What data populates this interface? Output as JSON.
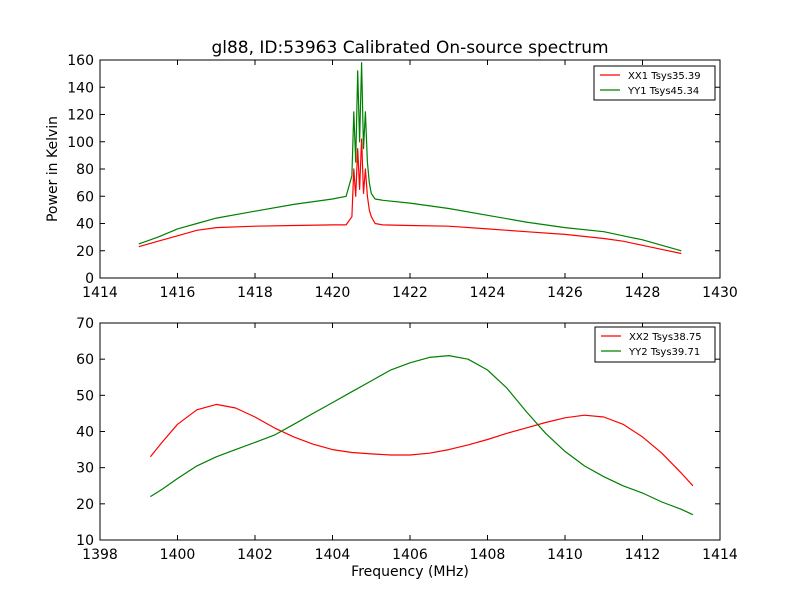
{
  "figure": {
    "title": "gl88, ID:53963 Calibrated On-source spectrum",
    "ylabel": "Power in Kelvin",
    "xlabel": "Frequency (MHz)"
  },
  "chart_data": [
    {
      "type": "line",
      "xlim": [
        1414,
        1430
      ],
      "ylim": [
        0,
        160
      ],
      "xticks": [
        "1414",
        "1416",
        "1418",
        "1420",
        "1422",
        "1424",
        "1426",
        "1428",
        "1430"
      ],
      "yticks": [
        "0",
        "20",
        "40",
        "60",
        "80",
        "100",
        "120",
        "140",
        "160"
      ],
      "legend_position": "top-right",
      "series": [
        {
          "name": "XX1 Tsys35.39",
          "color": "#ff0000",
          "x": [
            1415.0,
            1415.5,
            1416.0,
            1416.5,
            1417.0,
            1418.0,
            1419.0,
            1420.0,
            1420.35,
            1420.5,
            1420.55,
            1420.6,
            1420.65,
            1420.7,
            1420.75,
            1420.8,
            1420.85,
            1420.9,
            1420.95,
            1421.0,
            1421.1,
            1421.3,
            1422.0,
            1423.0,
            1424.0,
            1425.0,
            1426.0,
            1427.0,
            1427.5,
            1428.0,
            1428.5,
            1429.0
          ],
          "y": [
            23,
            27,
            31,
            35,
            37,
            38,
            38.5,
            39,
            39,
            45,
            80,
            60,
            95,
            65,
            102,
            62,
            80,
            60,
            50,
            45,
            40,
            39,
            38.5,
            38,
            36,
            34,
            32,
            29,
            27,
            24,
            21,
            18
          ]
        },
        {
          "name": "YY1 Tsys45.34",
          "color": "#008000",
          "x": [
            1415.0,
            1415.5,
            1416.0,
            1416.5,
            1417.0,
            1418.0,
            1419.0,
            1420.0,
            1420.35,
            1420.5,
            1420.55,
            1420.6,
            1420.65,
            1420.7,
            1420.75,
            1420.8,
            1420.85,
            1420.9,
            1420.95,
            1421.0,
            1421.1,
            1421.3,
            1422.0,
            1423.0,
            1424.0,
            1425.0,
            1426.0,
            1427.0,
            1427.5,
            1428.0,
            1428.5,
            1429.0
          ],
          "y": [
            25,
            30,
            36,
            40,
            44,
            49,
            54,
            58,
            60,
            75,
            122,
            85,
            152,
            100,
            158,
            95,
            122,
            85,
            70,
            62,
            58,
            57,
            55,
            51,
            46,
            41,
            37,
            34,
            31,
            28,
            24,
            20
          ]
        }
      ]
    },
    {
      "type": "line",
      "xlim": [
        1398,
        1414
      ],
      "ylim": [
        10,
        70
      ],
      "xticks": [
        "1398",
        "1400",
        "1402",
        "1404",
        "1406",
        "1408",
        "1410",
        "1412",
        "1414"
      ],
      "yticks": [
        "10",
        "20",
        "30",
        "40",
        "50",
        "60",
        "70"
      ],
      "legend_position": "top-right",
      "series": [
        {
          "name": "XX2 Tsys38.75",
          "color": "#ff0000",
          "x": [
            1399.3,
            1399.6,
            1400.0,
            1400.5,
            1401.0,
            1401.5,
            1402.0,
            1402.5,
            1403.0,
            1403.5,
            1404.0,
            1404.5,
            1405.0,
            1405.5,
            1406.0,
            1406.5,
            1407.0,
            1407.5,
            1408.0,
            1408.5,
            1409.0,
            1409.5,
            1410.0,
            1410.5,
            1411.0,
            1411.5,
            1412.0,
            1412.5,
            1413.0,
            1413.3
          ],
          "y": [
            33,
            37,
            42,
            46,
            47.5,
            46.5,
            44,
            41,
            38.5,
            36.5,
            35,
            34.2,
            33.8,
            33.5,
            33.5,
            34,
            35,
            36.3,
            37.8,
            39.5,
            41,
            42.5,
            43.8,
            44.5,
            44,
            42,
            38.5,
            34,
            28.5,
            25
          ]
        },
        {
          "name": "YY2 Tsys39.71",
          "color": "#008000",
          "x": [
            1399.3,
            1399.6,
            1400.0,
            1400.5,
            1401.0,
            1401.5,
            1402.0,
            1402.5,
            1403.0,
            1403.5,
            1404.0,
            1404.5,
            1405.0,
            1405.5,
            1406.0,
            1406.5,
            1407.0,
            1407.5,
            1408.0,
            1408.5,
            1409.0,
            1409.5,
            1410.0,
            1410.5,
            1411.0,
            1411.5,
            1412.0,
            1412.5,
            1413.0,
            1413.3
          ],
          "y": [
            22,
            24,
            27,
            30.5,
            33,
            35,
            37,
            39,
            42,
            45,
            48,
            51,
            54,
            57,
            59,
            60.5,
            61,
            60,
            57,
            52,
            45.5,
            39.5,
            34.5,
            30.5,
            27.5,
            25,
            23,
            20.5,
            18.5,
            17
          ]
        }
      ]
    }
  ]
}
